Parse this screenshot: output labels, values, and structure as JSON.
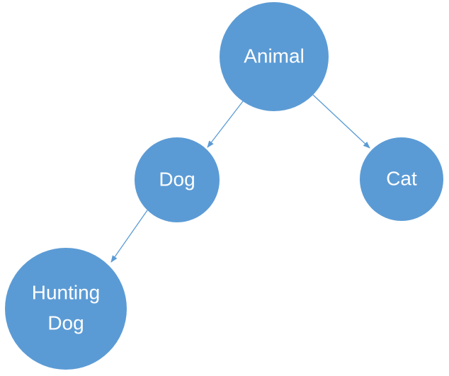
{
  "diagram": {
    "colors": {
      "node_fill": "#5b9bd5",
      "edge_stroke": "#5b9bd5",
      "label_text": "#ffffff",
      "background": "#ffffff"
    },
    "nodes": {
      "animal": {
        "label": "Animal"
      },
      "dog": {
        "label": "Dog"
      },
      "cat": {
        "label": "Cat"
      },
      "hunting_dog": {
        "label_line1": "Hunting",
        "label_line2": "Dog"
      }
    },
    "edges": [
      {
        "from": "animal",
        "to": "dog"
      },
      {
        "from": "animal",
        "to": "cat"
      },
      {
        "from": "dog",
        "to": "hunting_dog"
      }
    ]
  }
}
